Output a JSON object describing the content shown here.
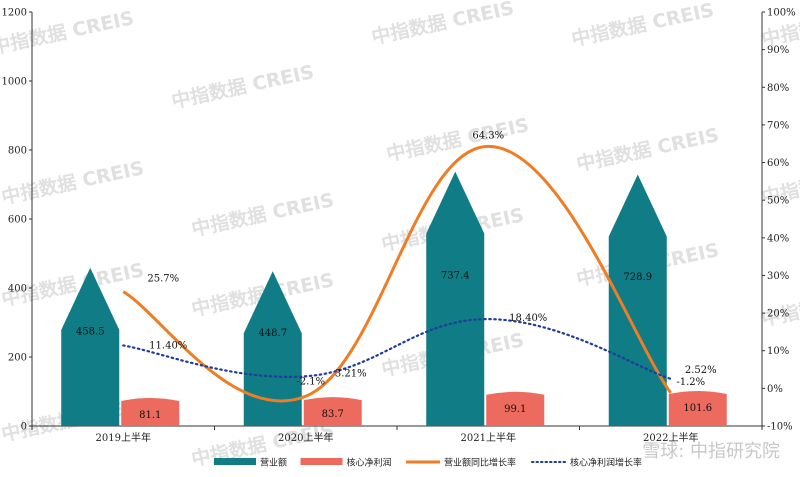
{
  "watermarks": [
    "中指数据 CREIS",
    "中指数据 CREIS",
    "中指数据 CREIS",
    "中指数据 CREIS",
    "中指数据 CREIS",
    "中指数据 CREIS",
    "中指数据 CREIS",
    "中指数据 CREIS",
    "中指数据 CREIS",
    "中指数据 CREIS",
    "中指数据 CREIS",
    "中指数据 CREIS",
    "中指数据 CREIS",
    "中指数据 CREIS",
    "中指数据 CREIS",
    "中指数据 CREIS",
    "中指数据 CREIS",
    "中指数据 CREIS"
  ],
  "signature": "雪球: 中指研究院",
  "colors": {
    "teal": "#0f7c86",
    "coral": "#ec6a5e",
    "orange": "#ee7d25",
    "navy": "#1f3d99"
  },
  "chart_data": {
    "type": "bar",
    "categories": [
      "2019上半年",
      "2020上半年",
      "2021上半年",
      "2022上半年"
    ],
    "y_left": {
      "min": 0,
      "max": 1200,
      "step": 200
    },
    "y_right": {
      "min": -10,
      "max": 100,
      "step": 10,
      "suffix": "%"
    },
    "series": [
      {
        "name": "营业额",
        "kind": "bar",
        "axis": "left",
        "color": "#0f7c86",
        "values": [
          458.5,
          448.7,
          737.4,
          728.9
        ],
        "labels": [
          "458.5",
          "448.7",
          "737.4",
          "728.9"
        ]
      },
      {
        "name": "核心净利润",
        "kind": "bar",
        "axis": "left",
        "color": "#ec6a5e",
        "values": [
          81.1,
          83.7,
          99.1,
          101.6
        ],
        "labels": [
          "81.1",
          "83.7",
          "99.1",
          "101.6"
        ]
      },
      {
        "name": "营业额同比增长率",
        "kind": "line",
        "axis": "right",
        "color": "#ee7d25",
        "values": [
          25.7,
          -2.1,
          64.3,
          -1.2
        ],
        "labels": [
          "25.7%",
          "-2.1%",
          "64.3%",
          "-1.2%"
        ]
      },
      {
        "name": "核心净利润增长率",
        "kind": "dotted-line",
        "axis": "right",
        "color": "#1f3d99",
        "values": [
          11.4,
          3.21,
          18.4,
          2.52
        ],
        "labels": [
          "11.40%",
          "3.21%",
          "18.40%",
          "2.52%"
        ]
      }
    ],
    "legend": "bottom"
  }
}
